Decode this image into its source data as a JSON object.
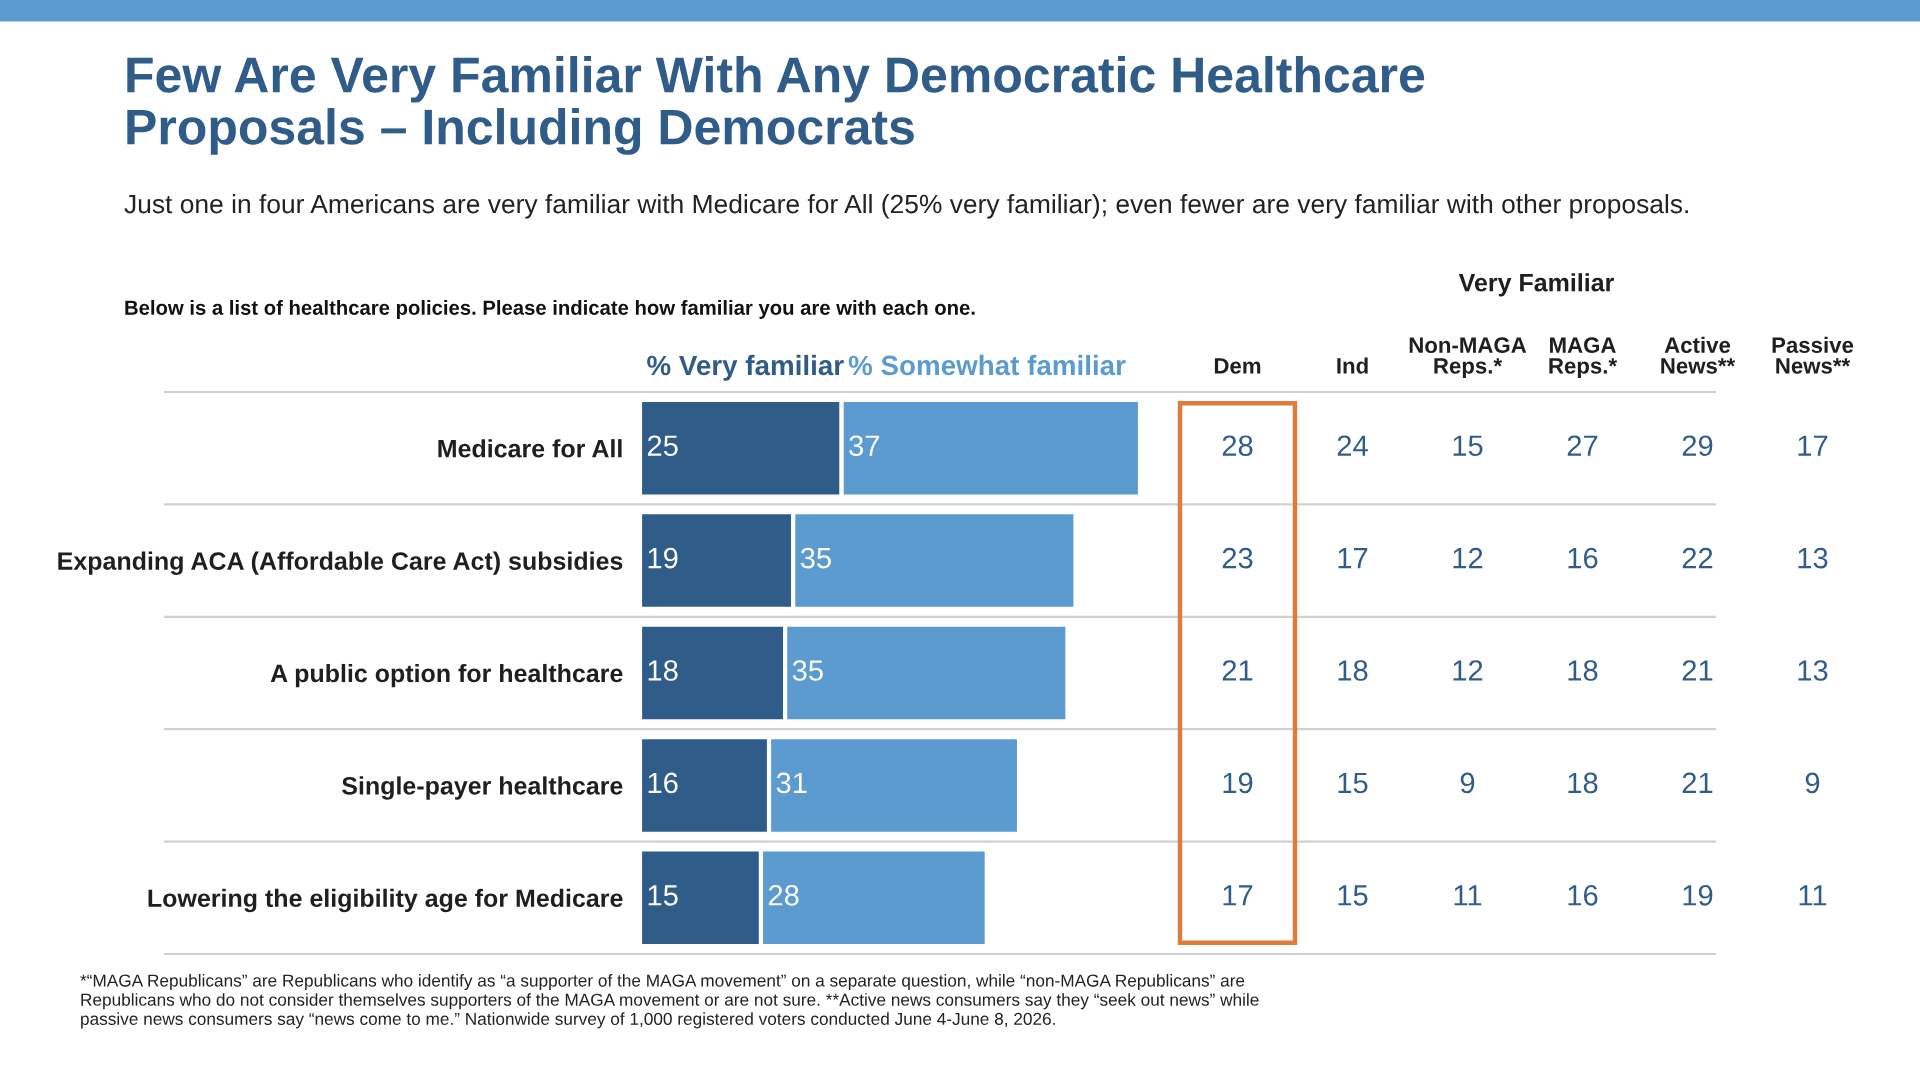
{
  "chart_data": [
    {
      "type": "bar",
      "orientation": "horizontal",
      "stacked": true,
      "title": "Few Are Very Familiar With Any Democratic Healthcare\nProposals – Including Democrats",
      "subtitle": "Just one in four Americans are very familiar with Medicare for All (25% very familiar); even fewer are very familiar with other proposals.",
      "categories": [
        "Medicare for All",
        "Expanding ACA (Affordable Care Act) subsidies",
        "A public option for healthcare",
        "Single-payer healthcare",
        "Lowering the eligibility age for Medicare"
      ],
      "series": [
        {
          "name": "% Very familiar",
          "color": "#2f5c88",
          "values": [
            25,
            19,
            18,
            16,
            15
          ]
        },
        {
          "name": "% Somewhat familiar",
          "color": "#5b9bcf",
          "values": [
            37,
            35,
            35,
            31,
            28
          ]
        }
      ],
      "data_labels": true,
      "legend": "top",
      "tick_labels": "y",
      "annotations": [
        "Below is a list of healthcare policies. Please indicate how familiar you are with each one.",
        "*“MAGA Republicans” are Republicans who identify as “a supporter of the MAGA movement” on a separate question, while “non-MAGA Republicans” are\nRepublicans who do not consider themselves supporters of the MAGA movement or are not sure. **Active news consumers say they “seek out news” while\npassive news consumers say “news come to me.” Nationwide survey of 1,000 registered voters conducted June 4-June 8, 2026."
      ]
    },
    {
      "type": "heatmap",
      "title": "Very Familiar",
      "color": "#2f5c88",
      "tick_labels": "x",
      "data_labels": true,
      "categories": [
        "Dem",
        "Ind",
        "Non-MAGA\nReps.*",
        "MAGA\nReps.*",
        "Active\nNews**",
        "Passive\nNews**"
      ],
      "y_categories": [
        null,
        null,
        null,
        null,
        null
      ],
      "cells": [
        [
          28,
          24,
          15,
          27,
          29,
          17
        ],
        [
          23,
          17,
          12,
          16,
          22,
          13
        ],
        [
          21,
          18,
          12,
          18,
          21,
          13
        ],
        [
          19,
          15,
          9,
          18,
          21,
          9
        ],
        [
          17,
          15,
          11,
          16,
          19,
          11
        ]
      ]
    }
  ]
}
